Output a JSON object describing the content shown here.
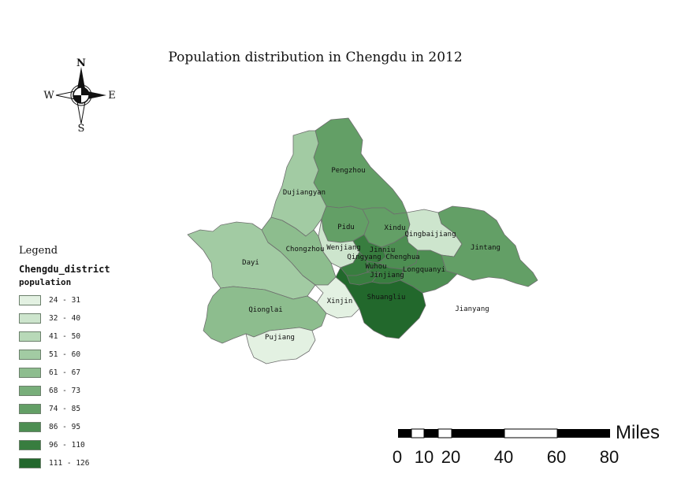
{
  "title": "Population distribution in Chengdu in 2012",
  "compass": {
    "north": "N",
    "south": "S",
    "east": "E",
    "west": "W"
  },
  "legend": {
    "title": "Legend",
    "layer": "Chengdu_district",
    "field": "population",
    "classes": [
      {
        "range": "24 - 31",
        "color": "#e3f1e2"
      },
      {
        "range": "32 - 40",
        "color": "#cde5cd"
      },
      {
        "range": "41 - 50",
        "color": "#b8d9b8"
      },
      {
        "range": "51 - 60",
        "color": "#a2cba3"
      },
      {
        "range": "61 - 67",
        "color": "#8dbd8e"
      },
      {
        "range": "68 - 73",
        "color": "#78ae7a"
      },
      {
        "range": "74 - 85",
        "color": "#639f66"
      },
      {
        "range": "86 - 95",
        "color": "#4d8e52"
      },
      {
        "range": "96 - 110",
        "color": "#387d3f"
      },
      {
        "range": "111 - 126",
        "color": "#22682c"
      }
    ]
  },
  "districts": [
    {
      "name": "Pengzhou",
      "color": "#639f66"
    },
    {
      "name": "Dujiangyan",
      "color": "#a2cba3"
    },
    {
      "name": "Pidu",
      "color": "#639f66"
    },
    {
      "name": "Xindu",
      "color": "#639f66"
    },
    {
      "name": "Qingbaijiang",
      "color": "#cde5cd"
    },
    {
      "name": "Jintang",
      "color": "#639f66"
    },
    {
      "name": "Wenjiang",
      "color": "#cde5cd"
    },
    {
      "name": "Jinniu",
      "color": "#387d3f"
    },
    {
      "name": "Qingyang",
      "color": "#387d3f"
    },
    {
      "name": "Chenghua",
      "color": "#4d8e52"
    },
    {
      "name": "Wuhou",
      "color": "#387d3f"
    },
    {
      "name": "Jinjiang",
      "color": "#387d3f"
    },
    {
      "name": "Longquanyi",
      "color": "#4d8e52"
    },
    {
      "name": "Chongzhou",
      "color": "#8dbd8e"
    },
    {
      "name": "Dayi",
      "color": "#a2cba3"
    },
    {
      "name": "Qionglai",
      "color": "#8dbd8e"
    },
    {
      "name": "Xinjin",
      "color": "#e3f1e2"
    },
    {
      "name": "Pujiang",
      "color": "#e3f1e2"
    },
    {
      "name": "Shuangliu",
      "color": "#22682c"
    },
    {
      "name": "Jianyang",
      "color": ""
    }
  ],
  "scalebar": {
    "ticks": [
      "0",
      "10",
      "20",
      "40",
      "60",
      "80"
    ],
    "unit": "Miles"
  }
}
